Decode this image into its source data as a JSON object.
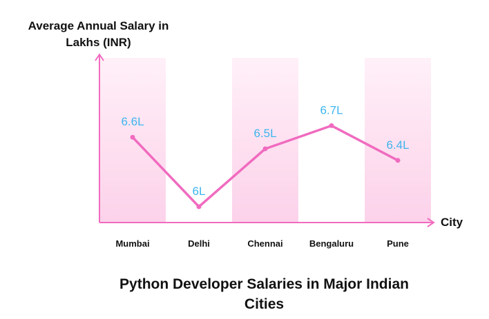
{
  "chart_data": {
    "type": "line",
    "title": "Python Developer Salaries in Major Indian Cities",
    "xlabel": "City",
    "ylabel": "Average Annual Salary in Lakhs (INR)",
    "categories": [
      "Mumbai",
      "Delhi",
      "Chennai",
      "Bengaluru",
      "Pune"
    ],
    "values": [
      6.6,
      6.0,
      6.5,
      6.7,
      6.4
    ],
    "data_labels": [
      "6.6L",
      "6L",
      "6.5L",
      "6.7L",
      "6.4L"
    ],
    "ylim": [
      5.9,
      6.8
    ],
    "grid": false,
    "colors": {
      "line": "#f06bbf",
      "axis": "#f06bbf",
      "band": "#fde4f2",
      "label": "#3cb5ee"
    }
  }
}
